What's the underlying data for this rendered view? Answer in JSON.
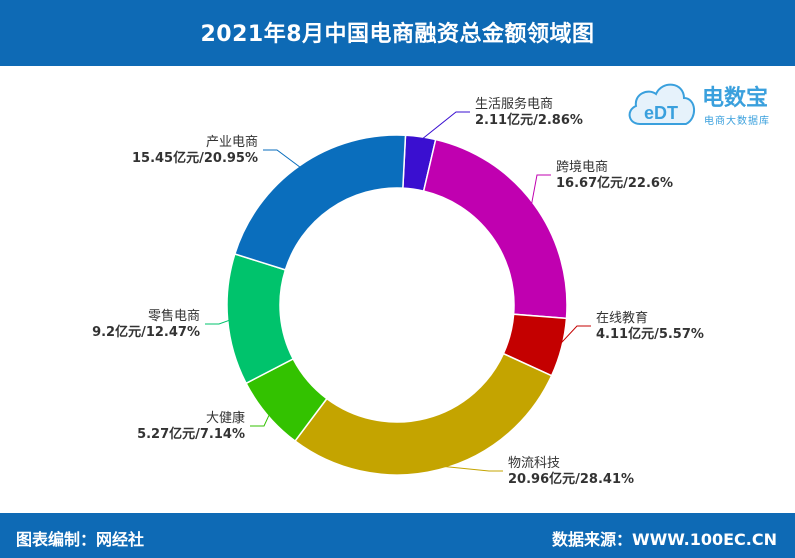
{
  "header": {
    "title": "2021年8月中国电商融资总金额领域图"
  },
  "footer": {
    "compiler": "图表编制：网经社",
    "source": "数据来源：WWW.100EC.CN"
  },
  "logo": {
    "brand": "电数宝",
    "tagline": "电商大数据库",
    "mark": "eDT"
  },
  "chart_data": {
    "type": "pie",
    "donut": true,
    "title": "2021年8月中国电商融资总金额领域图",
    "unit": "亿元",
    "slices": [
      {
        "name": "生活服务电商",
        "value": 2.11,
        "percent": 2.86,
        "label": "2.11亿元/2.86%",
        "color": "#3a0fd0"
      },
      {
        "name": "跨境电商",
        "value": 16.67,
        "percent": 22.6,
        "label": "16.67亿元/22.6%",
        "color": "#c000b0"
      },
      {
        "name": "在线教育",
        "value": 4.11,
        "percent": 5.57,
        "label": "4.11亿元/5.57%",
        "color": "#c40000"
      },
      {
        "name": "物流科技",
        "value": 20.96,
        "percent": 28.41,
        "label": "20.96亿元/28.41%",
        "color": "#c4a400"
      },
      {
        "name": "大健康",
        "value": 5.27,
        "percent": 7.14,
        "label": "5.27亿元/7.14%",
        "color": "#33c200"
      },
      {
        "name": "零售电商",
        "value": 9.2,
        "percent": 12.47,
        "label": "9.2亿元/12.47%",
        "color": "#00c36c"
      },
      {
        "name": "产业电商",
        "value": 15.45,
        "percent": 20.95,
        "label": "15.45亿元/20.95%",
        "color": "#0a6ebd"
      }
    ]
  }
}
